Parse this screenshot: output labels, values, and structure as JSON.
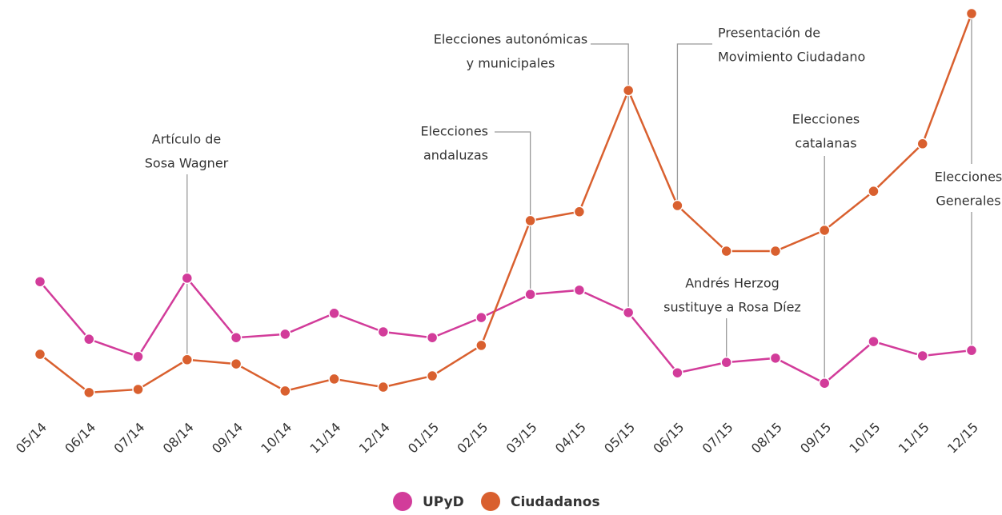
{
  "chart_data": {
    "type": "line",
    "categories": [
      "05/14",
      "06/14",
      "07/14",
      "08/14",
      "09/14",
      "10/14",
      "11/14",
      "12/14",
      "01/15",
      "02/15",
      "03/15",
      "04/15",
      "05/15",
      "06/15",
      "07/15",
      "08/15",
      "09/15",
      "10/15",
      "11/15",
      "12/15"
    ],
    "series": [
      {
        "name": "UPyD",
        "color": "#d23c9a",
        "values": [
          30.6,
          15.7,
          11.2,
          31.5,
          16.1,
          17.0,
          22.4,
          17.6,
          16.1,
          21.3,
          27.3,
          28.4,
          22.6,
          7.0,
          9.7,
          10.8,
          4.3,
          15.1,
          11.4,
          12.8
        ]
      },
      {
        "name": "Ciudadanos",
        "color": "#d9602f",
        "values": [
          11.8,
          1.9,
          2.7,
          10.4,
          9.3,
          2.3,
          5.4,
          3.3,
          6.2,
          14.1,
          46.4,
          48.7,
          80.1,
          50.3,
          38.5,
          38.5,
          43.9,
          54.0,
          66.3,
          100
        ]
      }
    ],
    "ylim": [
      0,
      100
    ],
    "grid": false,
    "legend": "bottom",
    "annotations": [
      {
        "lines": [
          "Artículo de",
          "Sosa Wagner"
        ]
      },
      {
        "lines": [
          "Elecciones",
          "andaluzas"
        ]
      },
      {
        "lines": [
          "Elecciones autonómicas",
          "y municipales"
        ]
      },
      {
        "lines": [
          "Presentación de",
          "Movimiento Ciudadano"
        ]
      },
      {
        "lines": [
          "Andrés Herzog",
          "sustituye a Rosa Díez"
        ]
      },
      {
        "lines": [
          "Elecciones",
          "catalanas"
        ]
      },
      {
        "lines": [
          "Elecciones",
          "Generales"
        ]
      }
    ]
  }
}
